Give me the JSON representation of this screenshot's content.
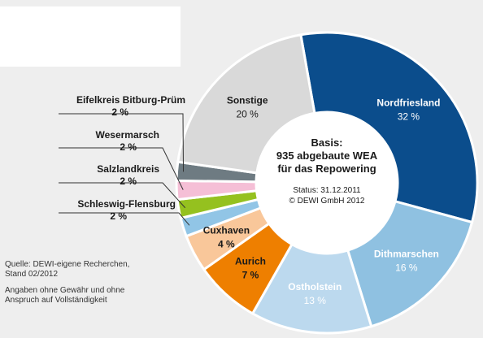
{
  "chart_data": {
    "type": "pie",
    "variant": "donut",
    "slices": [
      {
        "label": "Nordfriesland",
        "value": 32,
        "value_label": "32 %",
        "color": "#0b4d8c",
        "text_color": "#ffffff"
      },
      {
        "label": "Dithmarschen",
        "value": 16,
        "value_label": "16 %",
        "color": "#8fc1e1",
        "text_color": "#ffffff"
      },
      {
        "label": "Ostholstein",
        "value": 13,
        "value_label": "13 %",
        "color": "#bcd9ee",
        "text_color": "#ffffff"
      },
      {
        "label": "Aurich",
        "value": 7,
        "value_label": "7 %",
        "color": "#ee7f00",
        "text_color": "#1a1a1a"
      },
      {
        "label": "Cuxhaven",
        "value": 4,
        "value_label": "4 %",
        "color": "#f9c79a",
        "text_color": "#1a1a1a"
      },
      {
        "label": "Schleswig-Flensburg",
        "value": 2,
        "value_label": "2 %",
        "color": "#91c5e6",
        "text_color": "#1a1a1a"
      },
      {
        "label": "Salzlandkreis",
        "value": 2,
        "value_label": "2 %",
        "color": "#95c11f",
        "text_color": "#1a1a1a"
      },
      {
        "label": "Wesermarsch",
        "value": 2,
        "value_label": "2 %",
        "color": "#f5bfd6",
        "text_color": "#1a1a1a"
      },
      {
        "label": "Eifelkreis Bitburg-Prüm",
        "value": 2,
        "value_label": "2 %",
        "color": "#6e7b82",
        "text_color": "#1a1a1a"
      },
      {
        "label": "Sonstige",
        "value": 20,
        "value_label": "20 %",
        "color": "#d9d9d9",
        "text_color": "#1a1a1a"
      }
    ],
    "center": {
      "basis_line1": "Basis:",
      "basis_line2": "935 abgebaute WEA",
      "basis_line3": "für das Repowering",
      "status": "Status: 31.12.2011",
      "copyright": "© DEWI GmbH 2012"
    }
  },
  "source": {
    "line1": "Quelle: DEWI-eigene Recherchen,",
    "line2": "Stand 02/2012",
    "line3": "Angaben ohne Gewähr und ohne",
    "line4": "Anspruch auf Vollständigkeit"
  },
  "colors": {
    "background": "#eeeeee",
    "donut_hole": "#ffffff"
  }
}
